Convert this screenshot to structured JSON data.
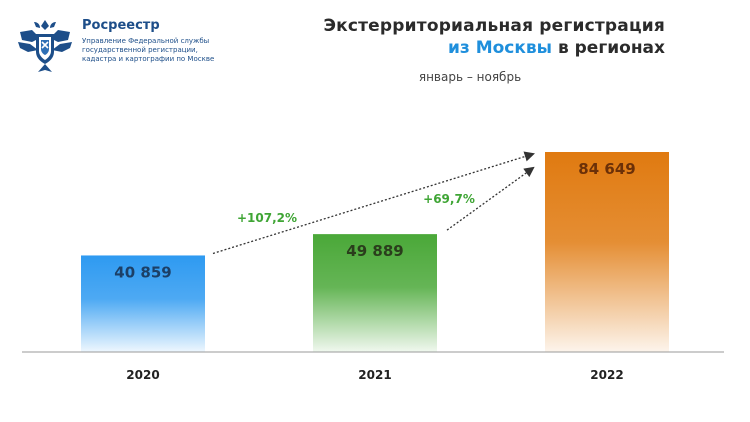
{
  "header": {
    "org_name": "Росреестр",
    "org_sub": [
      "Управление Федеральной службы",
      "государственной регистрации,",
      "кадастра и картографии по Москве"
    ],
    "title_line1": "Экстерриториальная регистрация",
    "title_line2_highlight": "из Москвы",
    "title_line2_rest": " в регионах",
    "period": "январь – ноябрь"
  },
  "chart_data": {
    "type": "bar",
    "categories": [
      "2020",
      "2021",
      "2022"
    ],
    "values": [
      40859,
      49889,
      84649
    ],
    "value_labels": [
      "40 859",
      "49 889",
      "84 649"
    ],
    "bar_colors": [
      "#2e9af1",
      "#4aa838",
      "#e07a10"
    ],
    "label_colors": [
      "#1c3f66",
      "#2a3d1c",
      "#6b3008"
    ],
    "growth": [
      {
        "from": "2020",
        "to": "2022",
        "label": "+107,2%"
      },
      {
        "from": "2021",
        "to": "2022",
        "label": "+69,7%"
      }
    ],
    "grid": false,
    "legend": "none"
  },
  "colors": {
    "accent_blue": "#1f8fdc",
    "growth_green": "#3fa535",
    "brand_navy": "#1d4e89"
  }
}
